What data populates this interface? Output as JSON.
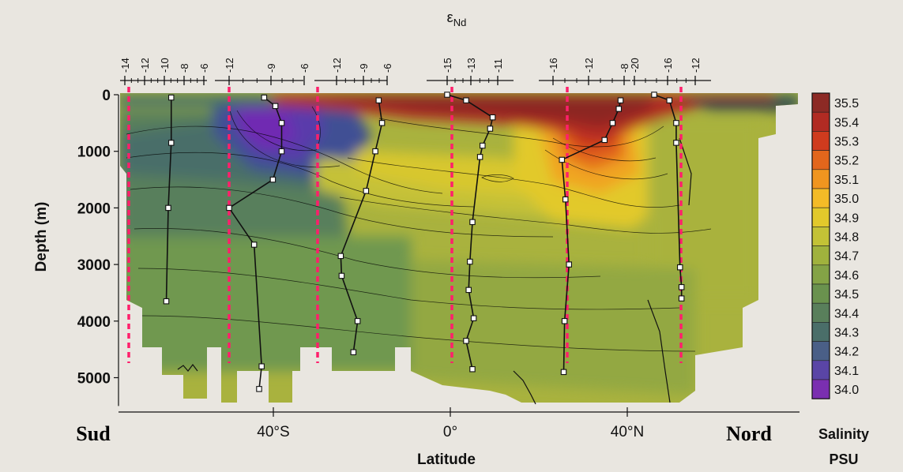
{
  "chart_data": {
    "type": "heatmap",
    "title": "",
    "xlabel": "Latitude",
    "ylabel": "Depth (m)",
    "x_ticks": [
      "40°S",
      "0°",
      "40°N"
    ],
    "y_ticks": [
      0,
      1000,
      2000,
      3000,
      4000,
      5000
    ],
    "ylim": [
      0,
      5500
    ],
    "region_labels": {
      "south": "Sud",
      "north": "Nord"
    },
    "colorbar": {
      "title": "Salinity",
      "unit": "PSU",
      "levels": [
        35.5,
        35.4,
        35.3,
        35.2,
        35.1,
        35.0,
        34.9,
        34.8,
        34.7,
        34.6,
        34.5,
        34.4,
        34.3,
        34.2,
        34.1,
        34.0
      ],
      "colors": [
        "#8c2a25",
        "#b12b23",
        "#cf3b1e",
        "#e2661c",
        "#f0951f",
        "#f4bb27",
        "#e2c92b",
        "#c3c236",
        "#a0b23d",
        "#84a346",
        "#6a924e",
        "#597f5b",
        "#4a6e69",
        "#4a5f87",
        "#5a45a6",
        "#7a2fb0"
      ]
    },
    "profile_label": "εNd",
    "profile_axes": [
      {
        "ticks": [
          "-14",
          "-12",
          "-10",
          "-8",
          "-6"
        ]
      },
      {
        "ticks": [
          "-12",
          "-9",
          "-6"
        ]
      },
      {
        "ticks": [
          "-12",
          "-9",
          "-6"
        ]
      },
      {
        "ticks": [
          "-15",
          "-13",
          "-11"
        ]
      },
      {
        "ticks": [
          "-16",
          "-12",
          "-8"
        ]
      },
      {
        "ticks": [
          "-20",
          "-16",
          "-12"
        ]
      }
    ],
    "profiles": [
      {
        "name": "",
        "points": [
          {
            "epsilon": -9.3,
            "depth": 50
          },
          {
            "epsilon": -9.3,
            "depth": 850
          },
          {
            "epsilon": -9.6,
            "depth": 2000
          },
          {
            "epsilon": -9.8,
            "depth": 3650
          }
        ]
      },
      {
        "name": "",
        "points": [
          {
            "epsilon": -9.2,
            "depth": 50
          },
          {
            "epsilon": -8.3,
            "depth": 200
          },
          {
            "epsilon": -7.8,
            "depth": 500
          },
          {
            "epsilon": -7.8,
            "depth": 1000
          },
          {
            "epsilon": -8.5,
            "depth": 1500
          },
          {
            "epsilon": -12.0,
            "depth": 2000
          },
          {
            "epsilon": -10.0,
            "depth": 2650
          },
          {
            "epsilon": -9.4,
            "depth": 4800
          },
          {
            "epsilon": -9.6,
            "depth": 5200
          }
        ]
      },
      {
        "name": "",
        "points": [
          {
            "epsilon": -7.0,
            "depth": 100
          },
          {
            "epsilon": -6.6,
            "depth": 500
          },
          {
            "epsilon": -7.4,
            "depth": 1000
          },
          {
            "epsilon": -8.5,
            "depth": 1700
          },
          {
            "epsilon": -11.5,
            "depth": 2850
          },
          {
            "epsilon": -11.4,
            "depth": 3200
          },
          {
            "epsilon": -9.5,
            "depth": 4000
          },
          {
            "epsilon": -10.0,
            "depth": 4550
          }
        ]
      },
      {
        "name": "",
        "points": [
          {
            "epsilon": -15.0,
            "depth": 0
          },
          {
            "epsilon": -13.5,
            "depth": 100
          },
          {
            "epsilon": -11.4,
            "depth": 400
          },
          {
            "epsilon": -11.6,
            "depth": 600
          },
          {
            "epsilon": -12.2,
            "depth": 900
          },
          {
            "epsilon": -12.4,
            "depth": 1100
          },
          {
            "epsilon": -13.0,
            "depth": 2250
          },
          {
            "epsilon": -13.2,
            "depth": 2950
          },
          {
            "epsilon": -13.3,
            "depth": 3450
          },
          {
            "epsilon": -12.9,
            "depth": 3950
          },
          {
            "epsilon": -13.5,
            "depth": 4350
          },
          {
            "epsilon": -13.0,
            "depth": 4850
          }
        ]
      },
      {
        "name": "",
        "points": [
          {
            "epsilon": -8.4,
            "depth": 100
          },
          {
            "epsilon": -8.6,
            "depth": 250
          },
          {
            "epsilon": -9.3,
            "depth": 500
          },
          {
            "epsilon": -10.2,
            "depth": 800
          },
          {
            "epsilon": -15.0,
            "depth": 1150
          },
          {
            "epsilon": -14.6,
            "depth": 1850
          },
          {
            "epsilon": -14.2,
            "depth": 3000
          },
          {
            "epsilon": -14.7,
            "depth": 4000
          },
          {
            "epsilon": -14.8,
            "depth": 4900
          }
        ]
      },
      {
        "name": "",
        "points": [
          {
            "epsilon": -17.4,
            "depth": 0
          },
          {
            "epsilon": -15.4,
            "depth": 100
          },
          {
            "epsilon": -14.5,
            "depth": 500
          },
          {
            "epsilon": -14.5,
            "depth": 850
          },
          {
            "epsilon": -14.0,
            "depth": 3050
          },
          {
            "epsilon": -13.8,
            "depth": 3400
          },
          {
            "epsilon": -13.8,
            "depth": 3600
          }
        ]
      }
    ]
  }
}
